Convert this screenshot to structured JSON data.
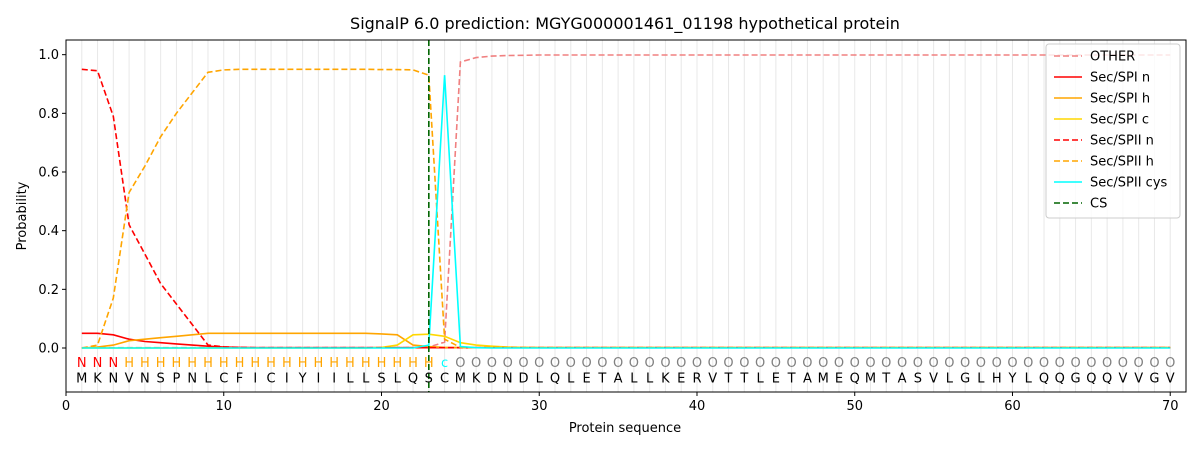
{
  "chart_data": {
    "type": "line",
    "title": "SignalP 6.0 prediction: MGYG000001461_01198 hypothetical protein",
    "xlabel": "Protein sequence",
    "ylabel": "Probability",
    "xlim": [
      0,
      71
    ],
    "ylim": [
      -0.15,
      1.05
    ],
    "x_ticks": [
      0,
      10,
      20,
      30,
      40,
      50,
      60,
      70
    ],
    "y_ticks": [
      0.0,
      0.2,
      0.4,
      0.6,
      0.8,
      1.0
    ],
    "x_tick_labels": [
      "0",
      "10",
      "20",
      "30",
      "40",
      "50",
      "60",
      "70"
    ],
    "y_tick_labels": [
      "0.0",
      "0.2",
      "0.4",
      "0.6",
      "0.8",
      "1.0"
    ],
    "legend_position": "top-right",
    "sequence": [
      "M",
      "K",
      "N",
      "V",
      "N",
      "S",
      "P",
      "N",
      "L",
      "C",
      "F",
      "I",
      "C",
      "I",
      "Y",
      "I",
      "I",
      "L",
      "L",
      "S",
      "L",
      "Q",
      "S",
      "C",
      "M",
      "K",
      "D",
      "N",
      "D",
      "L",
      "Q",
      "L",
      "E",
      "T",
      "A",
      "L",
      "L",
      "K",
      "E",
      "R",
      "V",
      "T",
      "T",
      "L",
      "E",
      "T",
      "A",
      "M",
      "E",
      "Q",
      "M",
      "T",
      "A",
      "S",
      "V",
      "L",
      "G",
      "L",
      "H",
      "Y",
      "L",
      "Q",
      "Q",
      "G",
      "Q",
      "Q",
      "V",
      "V",
      "G",
      "V"
    ],
    "region_labels": [
      "N",
      "N",
      "N",
      "H",
      "H",
      "H",
      "H",
      "H",
      "H",
      "H",
      "H",
      "H",
      "H",
      "H",
      "H",
      "H",
      "H",
      "H",
      "H",
      "H",
      "H",
      "H",
      "H",
      "C",
      "O",
      "O",
      "O",
      "O",
      "O",
      "O",
      "O",
      "O",
      "O",
      "O",
      "O",
      "O",
      "O",
      "O",
      "O",
      "O",
      "O",
      "O",
      "O",
      "O",
      "O",
      "O",
      "O",
      "O",
      "O",
      "O",
      "O",
      "O",
      "O",
      "O",
      "O",
      "O",
      "O",
      "O",
      "O",
      "O",
      "O",
      "O",
      "O",
      "O",
      "O",
      "O",
      "O",
      "O",
      "O",
      "O"
    ],
    "region_colors": {
      "N": "#ff0000",
      "H": "#ffa500",
      "C": "#00ffff",
      "O": "#808080"
    },
    "cs_position": 23,
    "series": [
      {
        "name": "OTHER",
        "color": "#f08080",
        "dash": true,
        "values": [
          0.001,
          0.001,
          0.001,
          0.001,
          0.001,
          0.001,
          0.001,
          0.001,
          0.001,
          0.001,
          0.001,
          0.001,
          0.001,
          0.001,
          0.001,
          0.001,
          0.001,
          0.001,
          0.001,
          0.001,
          0.001,
          0.001,
          0.003,
          0.02,
          0.975,
          0.99,
          0.995,
          0.997,
          0.998,
          0.999,
          0.999,
          0.999,
          0.999,
          0.999,
          0.999,
          0.999,
          0.999,
          0.999,
          0.999,
          0.999,
          0.999,
          0.999,
          0.999,
          0.999,
          0.999,
          0.999,
          0.999,
          0.999,
          0.999,
          0.999,
          0.999,
          0.999,
          0.999,
          0.999,
          0.999,
          0.999,
          0.999,
          0.999,
          0.999,
          0.999,
          0.999,
          0.999,
          0.999,
          0.999,
          0.999,
          0.999,
          0.999,
          0.999,
          0.999,
          0.999
        ]
      },
      {
        "name": "Sec/SPI n",
        "color": "#ff0000",
        "dash": false,
        "values": [
          0.05,
          0.05,
          0.045,
          0.03,
          0.022,
          0.018,
          0.014,
          0.01,
          0.006,
          0.003,
          0.002,
          0.001,
          0.001,
          0.001,
          0.001,
          0.001,
          0.001,
          0.001,
          0.001,
          0.001,
          0.001,
          0.001,
          0.001,
          0.001,
          0.001,
          0.001,
          0.001,
          0.001,
          0.001,
          0.001,
          0.001,
          0.001,
          0.001,
          0.001,
          0.001,
          0.001,
          0.001,
          0.001,
          0.001,
          0.001,
          0.001,
          0.001,
          0.001,
          0.001,
          0.001,
          0.001,
          0.001,
          0.001,
          0.001,
          0.001,
          0.001,
          0.001,
          0.001,
          0.001,
          0.001,
          0.001,
          0.001,
          0.001,
          0.001,
          0.001,
          0.001,
          0.001,
          0.001,
          0.001,
          0.001,
          0.001,
          0.001,
          0.001,
          0.001,
          0.001
        ]
      },
      {
        "name": "Sec/SPI h",
        "color": "#ffa500",
        "dash": false,
        "values": [
          0.0,
          0.003,
          0.01,
          0.025,
          0.03,
          0.035,
          0.04,
          0.045,
          0.05,
          0.05,
          0.05,
          0.05,
          0.05,
          0.05,
          0.05,
          0.05,
          0.05,
          0.05,
          0.05,
          0.048,
          0.045,
          0.01,
          0.005,
          0.002,
          0.001,
          0.001,
          0.001,
          0.001,
          0.001,
          0.001,
          0.001,
          0.001,
          0.001,
          0.001,
          0.001,
          0.001,
          0.001,
          0.001,
          0.001,
          0.001,
          0.001,
          0.001,
          0.001,
          0.001,
          0.001,
          0.001,
          0.001,
          0.001,
          0.001,
          0.001,
          0.001,
          0.001,
          0.001,
          0.001,
          0.001,
          0.001,
          0.001,
          0.001,
          0.001,
          0.001,
          0.001,
          0.001,
          0.001,
          0.001,
          0.001,
          0.001,
          0.001,
          0.001,
          0.001,
          0.001
        ]
      },
      {
        "name": "Sec/SPI c",
        "color": "#ffd700",
        "dash": false,
        "values": [
          0.0,
          0.0,
          0.0,
          0.0,
          0.0,
          0.0,
          0.0,
          0.0,
          0.0,
          0.0,
          0.0,
          0.0,
          0.0,
          0.0,
          0.0,
          0.0,
          0.0,
          0.0,
          0.0,
          0.002,
          0.01,
          0.045,
          0.047,
          0.04,
          0.018,
          0.01,
          0.006,
          0.003,
          0.002,
          0.001,
          0.001,
          0.001,
          0.001,
          0.001,
          0.001,
          0.001,
          0.001,
          0.001,
          0.001,
          0.001,
          0.001,
          0.001,
          0.001,
          0.001,
          0.001,
          0.001,
          0.001,
          0.001,
          0.001,
          0.001,
          0.001,
          0.001,
          0.001,
          0.001,
          0.001,
          0.001,
          0.001,
          0.001,
          0.001,
          0.001,
          0.001,
          0.001,
          0.001,
          0.001,
          0.001,
          0.001,
          0.001,
          0.001,
          0.001,
          0.001
        ]
      },
      {
        "name": "Sec/SPII n",
        "color": "#ff0000",
        "dash": true,
        "values": [
          0.95,
          0.945,
          0.79,
          0.42,
          0.32,
          0.22,
          0.15,
          0.08,
          0.01,
          0.004,
          0.002,
          0.001,
          0.001,
          0.001,
          0.001,
          0.001,
          0.001,
          0.001,
          0.001,
          0.001,
          0.001,
          0.001,
          0.001,
          0.001,
          0.001,
          0.001,
          0.001,
          0.001,
          0.001,
          0.001,
          0.001,
          0.001,
          0.001,
          0.001,
          0.001,
          0.001,
          0.001,
          0.001,
          0.001,
          0.001,
          0.001,
          0.001,
          0.001,
          0.001,
          0.001,
          0.001,
          0.001,
          0.001,
          0.001,
          0.001,
          0.001,
          0.001,
          0.001,
          0.001,
          0.001,
          0.001,
          0.001,
          0.001,
          0.001,
          0.001,
          0.001,
          0.001,
          0.001,
          0.001,
          0.001,
          0.001,
          0.001,
          0.001,
          0.001,
          0.001
        ]
      },
      {
        "name": "Sec/SPII h",
        "color": "#ffa500",
        "dash": true,
        "values": [
          0.0,
          0.01,
          0.17,
          0.53,
          0.62,
          0.72,
          0.8,
          0.87,
          0.94,
          0.948,
          0.95,
          0.95,
          0.95,
          0.95,
          0.95,
          0.95,
          0.95,
          0.95,
          0.95,
          0.949,
          0.949,
          0.948,
          0.93,
          0.03,
          0.002,
          0.001,
          0.001,
          0.001,
          0.001,
          0.001,
          0.001,
          0.001,
          0.001,
          0.001,
          0.001,
          0.001,
          0.001,
          0.001,
          0.001,
          0.001,
          0.001,
          0.001,
          0.001,
          0.001,
          0.001,
          0.001,
          0.001,
          0.001,
          0.001,
          0.001,
          0.001,
          0.001,
          0.001,
          0.001,
          0.001,
          0.001,
          0.001,
          0.001,
          0.001,
          0.001,
          0.001,
          0.001,
          0.001,
          0.001,
          0.001,
          0.001,
          0.001,
          0.001,
          0.001,
          0.001
        ]
      },
      {
        "name": "Sec/SPII cys",
        "color": "#00ffff",
        "dash": false,
        "values": [
          0.0,
          0.0,
          0.0,
          0.0,
          0.0,
          0.0,
          0.0,
          0.0,
          0.0,
          0.0,
          0.0,
          0.0,
          0.0,
          0.0,
          0.0,
          0.0,
          0.0,
          0.0,
          0.0,
          0.0,
          0.0,
          0.0,
          0.01,
          0.93,
          0.005,
          0.001,
          0.0,
          0.0,
          0.0,
          0.0,
          0.0,
          0.0,
          0.0,
          0.0,
          0.0,
          0.0,
          0.0,
          0.0,
          0.0,
          0.0,
          0.0,
          0.0,
          0.0,
          0.0,
          0.0,
          0.0,
          0.0,
          0.0,
          0.0,
          0.0,
          0.0,
          0.0,
          0.0,
          0.0,
          0.0,
          0.0,
          0.0,
          0.0,
          0.0,
          0.0,
          0.0,
          0.0,
          0.0,
          0.0,
          0.0,
          0.0,
          0.0,
          0.0,
          0.0,
          0.0
        ]
      }
    ],
    "cs_legend": {
      "name": "CS",
      "color": "#006400",
      "dash": true
    }
  }
}
